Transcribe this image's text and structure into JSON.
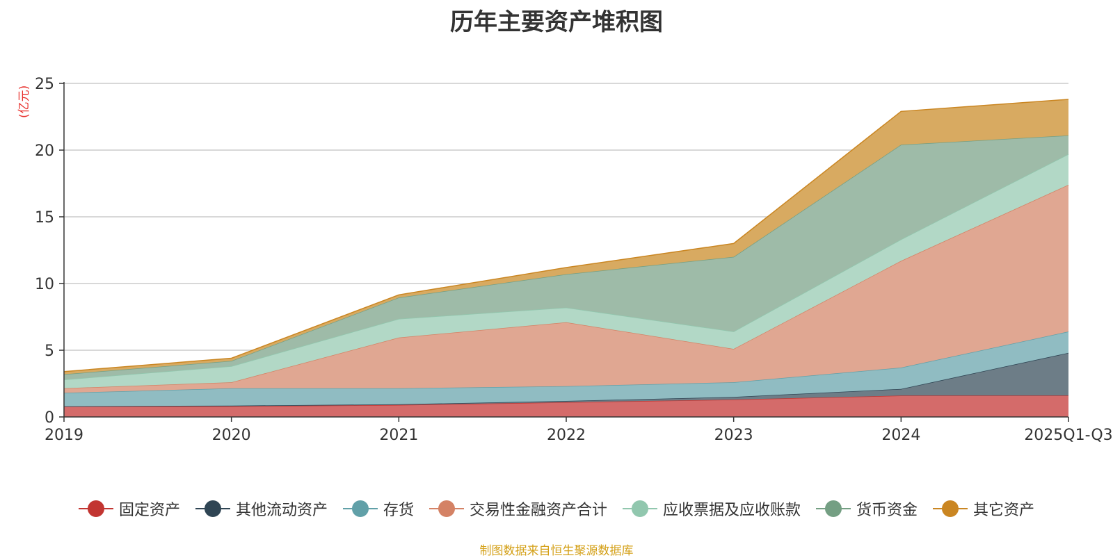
{
  "chart_data": {
    "type": "area",
    "stacked": true,
    "title": "历年主要资产堆积图",
    "ylabel": "(亿元)",
    "ylim": [
      0,
      25
    ],
    "yticks": [
      0,
      5,
      10,
      15,
      20,
      25
    ],
    "categories": [
      "2019",
      "2020",
      "2021",
      "2022",
      "2023",
      "2024",
      "2025Q1-Q3"
    ],
    "series": [
      {
        "name": "固定资产",
        "color": "#c23531",
        "line": "#c23531",
        "fill": "#d46b6a",
        "values": [
          0.8,
          0.8,
          0.9,
          1.1,
          1.3,
          1.6,
          1.6
        ]
      },
      {
        "name": "其他流动资产",
        "color": "#2f4554",
        "line": "#2f4554",
        "fill": "#6d7d87",
        "values": [
          0.0,
          0.05,
          0.05,
          0.1,
          0.2,
          0.5,
          3.2
        ]
      },
      {
        "name": "存货",
        "color": "#61a0a8",
        "line": "#61a0a8",
        "fill": "#90bcc2",
        "values": [
          1.0,
          1.3,
          1.2,
          1.1,
          1.1,
          1.6,
          1.6
        ]
      },
      {
        "name": "交易性金融资产合计",
        "color": "#d48265",
        "line": "#d48265",
        "fill": "#e0a792",
        "values": [
          0.35,
          0.45,
          3.8,
          4.8,
          2.5,
          8.0,
          11.0
        ]
      },
      {
        "name": "应收票据及应收账款",
        "color": "#91c7ae",
        "line": "#91c7ae",
        "fill": "#b2d8c6",
        "values": [
          0.65,
          1.2,
          1.4,
          1.1,
          1.3,
          1.6,
          2.3
        ]
      },
      {
        "name": "货币资金",
        "color": "#749f83",
        "line": "#749f83",
        "fill": "#9ebba8",
        "values": [
          0.4,
          0.4,
          1.6,
          2.5,
          5.6,
          7.1,
          1.4
        ]
      },
      {
        "name": "其它资产",
        "color": "#ca8622",
        "line": "#ca8622",
        "fill": "#d8aa61",
        "values": [
          0.2,
          0.2,
          0.2,
          0.5,
          1.0,
          2.5,
          2.7
        ]
      }
    ]
  },
  "source_note": "制图数据来自恒生聚源数据库"
}
